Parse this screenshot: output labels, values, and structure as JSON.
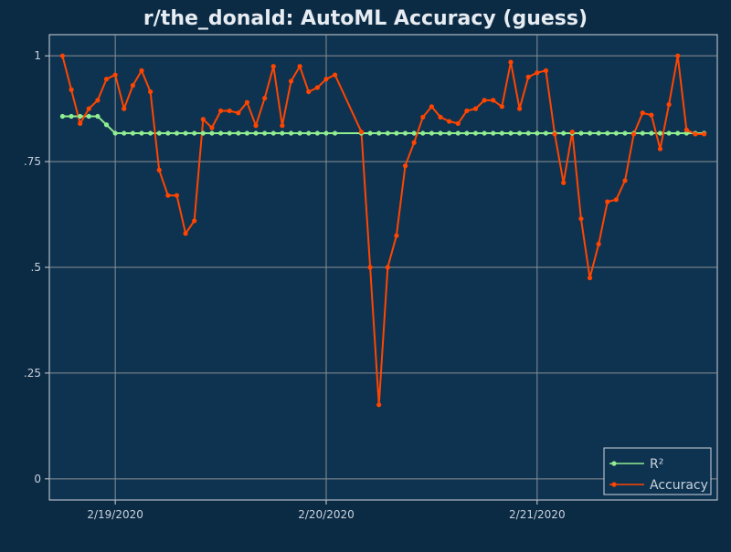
{
  "chart_data": {
    "type": "line",
    "title": "r/the_donald: AutoML Accuracy (guess)",
    "xlabel": "",
    "ylabel": "",
    "ylim": [
      -0.05,
      1.05
    ],
    "yticks": [
      {
        "value": 0,
        "label": "0"
      },
      {
        "value": 0.25,
        "label": ".25"
      },
      {
        "value": 0.5,
        "label": ".5"
      },
      {
        "value": 0.75,
        "label": ".75"
      },
      {
        "value": 1,
        "label": "1"
      }
    ],
    "xlim": [
      "2020-02-18 16:30",
      "2020-02-21 20:30"
    ],
    "xticks": [
      {
        "value": "2020-02-19 00:00",
        "label": "2/19/2020"
      },
      {
        "value": "2020-02-20 00:00",
        "label": "2/20/2020"
      },
      {
        "value": "2020-02-21 00:00",
        "label": "2/21/2020"
      }
    ],
    "grid": true,
    "legend_position": "bottom-right",
    "series": [
      {
        "name": "R²",
        "color": "#90ee90",
        "x": [
          "2020-02-18 18:00",
          "2020-02-18 19:00",
          "2020-02-18 20:00",
          "2020-02-18 21:00",
          "2020-02-18 22:00",
          "2020-02-18 23:00",
          "2020-02-19 00:00",
          "2020-02-19 01:00",
          "2020-02-19 02:00",
          "2020-02-19 03:00",
          "2020-02-19 04:00",
          "2020-02-19 05:00",
          "2020-02-19 06:00",
          "2020-02-19 07:00",
          "2020-02-19 08:00",
          "2020-02-19 09:00",
          "2020-02-19 10:00",
          "2020-02-19 11:00",
          "2020-02-19 12:00",
          "2020-02-19 13:00",
          "2020-02-19 14:00",
          "2020-02-19 15:00",
          "2020-02-19 16:00",
          "2020-02-19 17:00",
          "2020-02-19 18:00",
          "2020-02-19 19:00",
          "2020-02-19 20:00",
          "2020-02-19 21:00",
          "2020-02-19 22:00",
          "2020-02-19 23:00",
          "2020-02-20 00:00",
          "2020-02-20 01:00",
          "2020-02-20 04:00",
          "2020-02-20 05:00",
          "2020-02-20 06:00",
          "2020-02-20 07:00",
          "2020-02-20 08:00",
          "2020-02-20 09:00",
          "2020-02-20 10:00",
          "2020-02-20 11:00",
          "2020-02-20 12:00",
          "2020-02-20 13:00",
          "2020-02-20 14:00",
          "2020-02-20 15:00",
          "2020-02-20 16:00",
          "2020-02-20 17:00",
          "2020-02-20 18:00",
          "2020-02-20 19:00",
          "2020-02-20 20:00",
          "2020-02-20 21:00",
          "2020-02-20 22:00",
          "2020-02-20 23:00",
          "2020-02-21 00:00",
          "2020-02-21 01:00",
          "2020-02-21 02:00",
          "2020-02-21 03:00",
          "2020-02-21 04:00",
          "2020-02-21 05:00",
          "2020-02-21 06:00",
          "2020-02-21 07:00",
          "2020-02-21 08:00",
          "2020-02-21 09:00",
          "2020-02-21 10:00",
          "2020-02-21 11:00",
          "2020-02-21 12:00",
          "2020-02-21 13:00",
          "2020-02-21 14:00",
          "2020-02-21 15:00",
          "2020-02-21 16:00",
          "2020-02-21 17:00",
          "2020-02-21 18:00",
          "2020-02-21 19:00"
        ],
        "values": [
          0.857,
          0.857,
          0.857,
          0.857,
          0.857,
          0.837,
          0.817,
          0.817,
          0.817,
          0.817,
          0.817,
          0.817,
          0.817,
          0.817,
          0.817,
          0.817,
          0.817,
          0.817,
          0.817,
          0.817,
          0.817,
          0.817,
          0.817,
          0.817,
          0.817,
          0.817,
          0.817,
          0.817,
          0.817,
          0.817,
          0.817,
          0.817,
          0.817,
          0.817,
          0.817,
          0.817,
          0.817,
          0.817,
          0.817,
          0.817,
          0.817,
          0.817,
          0.817,
          0.817,
          0.817,
          0.817,
          0.817,
          0.817,
          0.817,
          0.817,
          0.817,
          0.817,
          0.817,
          0.817,
          0.817,
          0.817,
          0.817,
          0.817,
          0.817,
          0.817,
          0.817,
          0.817,
          0.817,
          0.817,
          0.817,
          0.817,
          0.817,
          0.817,
          0.817,
          0.817,
          0.817,
          0.817
        ]
      },
      {
        "name": "Accuracy",
        "color": "#ff4500",
        "x": [
          "2020-02-18 18:00",
          "2020-02-18 19:00",
          "2020-02-18 20:00",
          "2020-02-18 21:00",
          "2020-02-18 22:00",
          "2020-02-18 23:00",
          "2020-02-19 00:00",
          "2020-02-19 01:00",
          "2020-02-19 02:00",
          "2020-02-19 03:00",
          "2020-02-19 04:00",
          "2020-02-19 05:00",
          "2020-02-19 06:00",
          "2020-02-19 07:00",
          "2020-02-19 08:00",
          "2020-02-19 09:00",
          "2020-02-19 10:00",
          "2020-02-19 11:00",
          "2020-02-19 12:00",
          "2020-02-19 13:00",
          "2020-02-19 14:00",
          "2020-02-19 15:00",
          "2020-02-19 16:00",
          "2020-02-19 17:00",
          "2020-02-19 18:00",
          "2020-02-19 19:00",
          "2020-02-19 20:00",
          "2020-02-19 21:00",
          "2020-02-19 22:00",
          "2020-02-19 23:00",
          "2020-02-20 00:00",
          "2020-02-20 01:00",
          "2020-02-20 04:00",
          "2020-02-20 05:00",
          "2020-02-20 06:00",
          "2020-02-20 07:00",
          "2020-02-20 08:00",
          "2020-02-20 09:00",
          "2020-02-20 10:00",
          "2020-02-20 11:00",
          "2020-02-20 12:00",
          "2020-02-20 13:00",
          "2020-02-20 14:00",
          "2020-02-20 15:00",
          "2020-02-20 16:00",
          "2020-02-20 17:00",
          "2020-02-20 18:00",
          "2020-02-20 19:00",
          "2020-02-20 20:00",
          "2020-02-20 21:00",
          "2020-02-20 22:00",
          "2020-02-20 23:00",
          "2020-02-21 00:00",
          "2020-02-21 01:00",
          "2020-02-21 02:00",
          "2020-02-21 03:00",
          "2020-02-21 04:00",
          "2020-02-21 05:00",
          "2020-02-21 06:00",
          "2020-02-21 07:00",
          "2020-02-21 08:00",
          "2020-02-21 09:00",
          "2020-02-21 10:00",
          "2020-02-21 11:00",
          "2020-02-21 12:00",
          "2020-02-21 13:00",
          "2020-02-21 14:00",
          "2020-02-21 15:00",
          "2020-02-21 16:00",
          "2020-02-21 17:00",
          "2020-02-21 18:00",
          "2020-02-21 19:00"
        ],
        "values": [
          1.0,
          0.92,
          0.84,
          0.875,
          0.895,
          0.945,
          0.955,
          0.875,
          0.93,
          0.965,
          0.915,
          0.73,
          0.67,
          0.67,
          0.58,
          0.61,
          0.85,
          0.83,
          0.87,
          0.87,
          0.865,
          0.89,
          0.835,
          0.9,
          0.975,
          0.835,
          0.94,
          0.975,
          0.915,
          0.925,
          0.945,
          0.955,
          0.82,
          0.5,
          0.175,
          0.5,
          0.575,
          0.74,
          0.795,
          0.855,
          0.88,
          0.855,
          0.845,
          0.84,
          0.87,
          0.875,
          0.895,
          0.895,
          0.88,
          0.985,
          0.875,
          0.95,
          0.96,
          0.965,
          0.815,
          0.7,
          0.82,
          0.615,
          0.475,
          0.555,
          0.655,
          0.66,
          0.705,
          0.815,
          0.865,
          0.86,
          0.78,
          0.885,
          1.0,
          0.825,
          0.815,
          0.815
        ]
      }
    ]
  }
}
